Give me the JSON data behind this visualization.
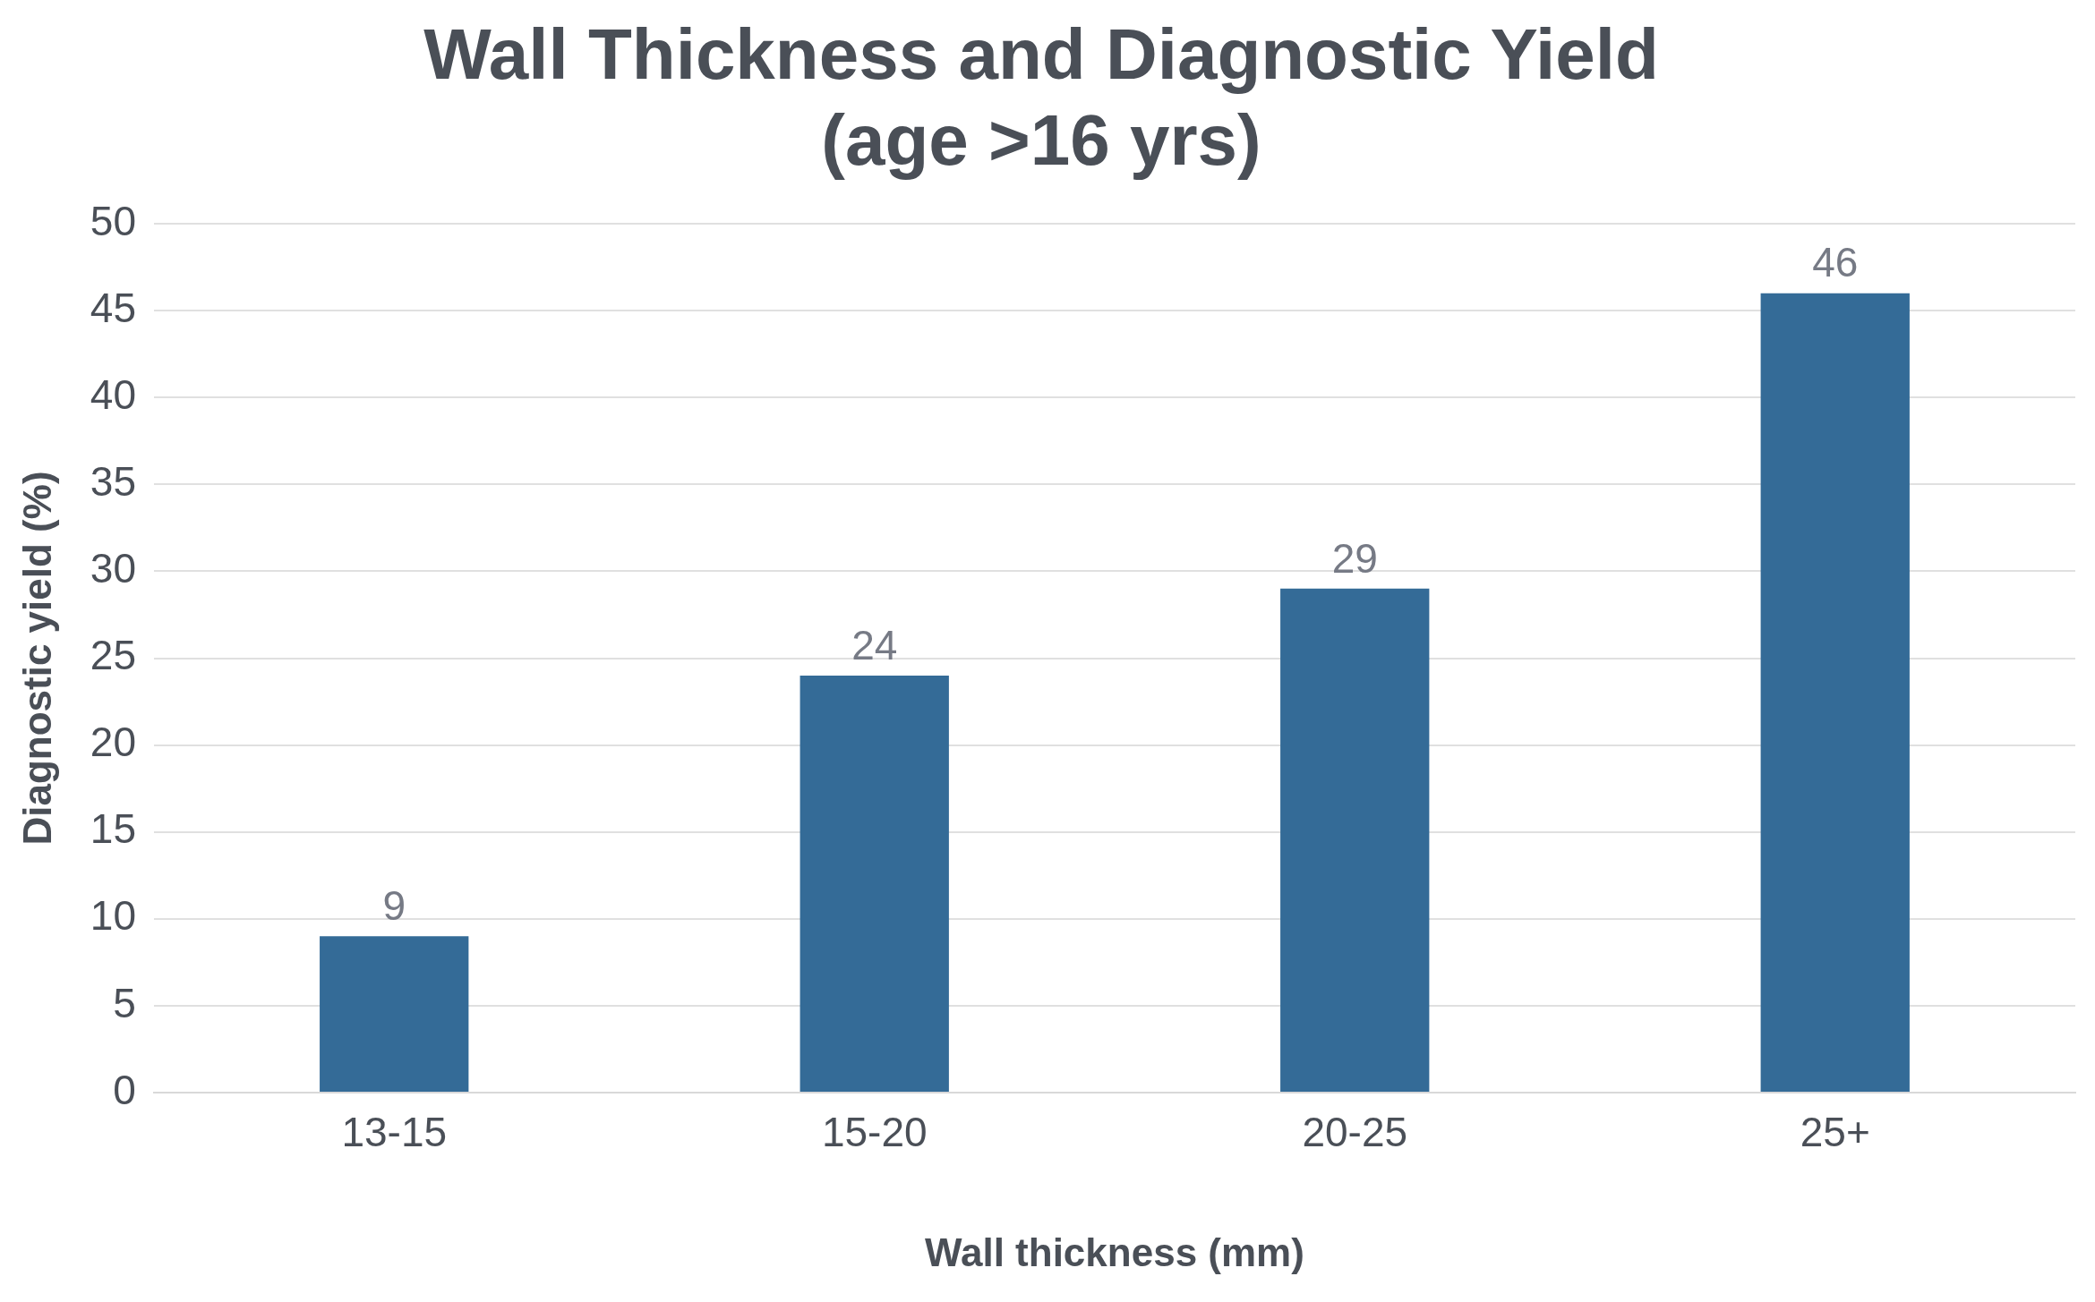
{
  "chart_data": {
    "type": "bar",
    "title": "Wall Thickness and Diagnostic Yield",
    "subtitle": "(age >16 yrs)",
    "xlabel": "Wall thickness (mm)",
    "ylabel": "Diagnostic yield (%)",
    "categories": [
      "13-15",
      "15-20",
      "20-25",
      "25+"
    ],
    "values": [
      9,
      24,
      29,
      46
    ],
    "color": "#346b97",
    "ylim": [
      0,
      50
    ],
    "yticks": [
      0,
      5,
      10,
      15,
      20,
      25,
      30,
      35,
      40,
      45,
      50
    ],
    "grid": "y",
    "data_labels": true,
    "legend": false
  }
}
